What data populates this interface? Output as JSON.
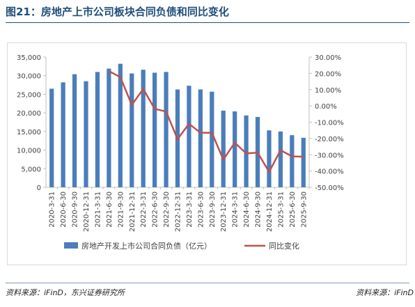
{
  "header": {
    "title": "图21：房地产上市公司板块合同负债和同比变化"
  },
  "footer": {
    "source_left": "资料来源：iFinD，东兴证券研究所",
    "source_right": "资料来源：iFinD"
  },
  "chart_data": {
    "type": "bar+line",
    "categories": [
      "2020-3-31",
      "2020-6-30",
      "2020-9-30",
      "2020-12-31",
      "2021-3-31",
      "2021-6-30",
      "2021-9-30",
      "2021-12-31",
      "2022-3-31",
      "2022-6-30",
      "2022-9-30",
      "2022-12-31",
      "2023-3-31",
      "2023-6-30",
      "2023-9-30",
      "2023-12-31",
      "2024-3-31",
      "2024-6-30",
      "2024-9-30",
      "2024-12-31",
      "2025-3-31",
      "2025-6-30",
      "2025-9-30"
    ],
    "series": [
      {
        "name": "房地产开发上市公司合同负债（亿元）",
        "kind": "bar",
        "axis": "left",
        "color": "#4a7ebb",
        "values": [
          26500,
          28200,
          30400,
          28500,
          31000,
          31900,
          33200,
          30600,
          31600,
          30800,
          31000,
          26300,
          27300,
          26300,
          25700,
          20600,
          20400,
          19300,
          18900,
          15300,
          15000,
          14000,
          13300
        ]
      },
      {
        "name": "同比变化",
        "kind": "line",
        "axis": "right",
        "color": "#c0504d",
        "values": [
          null,
          null,
          null,
          null,
          null,
          0.214,
          0.177,
          0.006,
          0.104,
          -0.018,
          -0.035,
          -0.205,
          -0.11,
          -0.165,
          -0.165,
          -0.33,
          -0.226,
          -0.292,
          -0.287,
          -0.406,
          -0.272,
          -0.31,
          -0.312
        ]
      }
    ],
    "y_left": {
      "min": 0,
      "max": 35000,
      "step": 5000,
      "ticks": [
        "0",
        "5,000",
        "10,000",
        "15,000",
        "20,000",
        "25,000",
        "30,000",
        "35,000"
      ]
    },
    "y_right": {
      "min": -0.5,
      "max": 0.3,
      "step": 0.1,
      "ticks": [
        "-50.00%",
        "-40.00%",
        "-30.00%",
        "-20.00%",
        "-10.00%",
        "0.00%",
        "10.00%",
        "20.00%",
        "30.00%"
      ]
    },
    "legend": "bottom",
    "grid": false
  }
}
